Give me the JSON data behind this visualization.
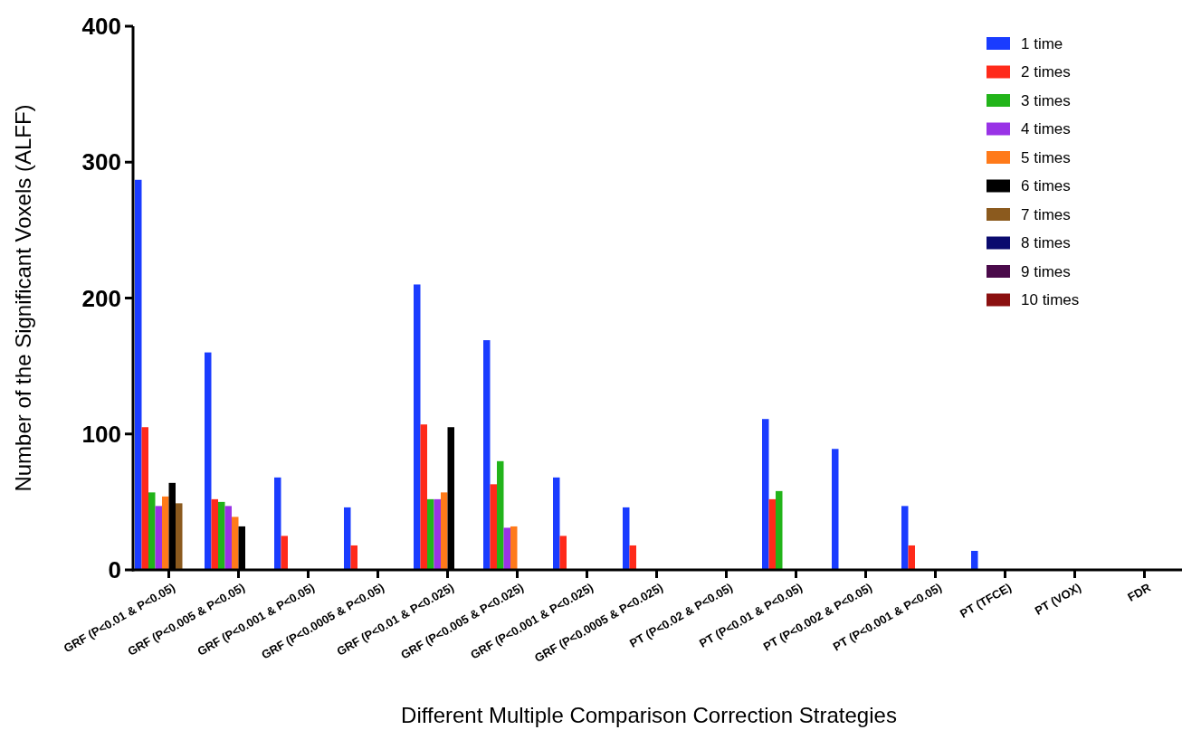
{
  "chart_data": {
    "type": "bar",
    "xlabel": "Different Multiple Comparison Correction Strategies",
    "ylabel": "Number of the Significant Voxels (ALFF)",
    "categories": [
      "GRF (P<0.01 & P<0.05)",
      "GRF (P<0.005 & P<0.05)",
      "GRF (P<0.001 & P<0.05)",
      "GRF (P<0.0005 & P<0.05)",
      "GRF (P<0.01 & P<0.025)",
      "GRF (P<0.005 & P<0.025)",
      "GRF (P<0.001 & P<0.025)",
      "GRF (P<0.0005 & P<0.025)",
      "PT (P<0.02 & P<0.05)",
      "PT (P<0.01 & P<0.05)",
      "PT (P<0.002 & P<0.05)",
      "PT (P<0.001 & P<0.05)",
      "PT (TFCE)",
      "PT (VOX)",
      "FDR"
    ],
    "series": [
      {
        "name": "1 time",
        "color": "#1a3cff",
        "values": [
          287,
          160,
          68,
          46,
          210,
          169,
          68,
          46,
          0,
          111,
          89,
          47,
          14,
          0,
          0
        ]
      },
      {
        "name": "2 times",
        "color": "#ff2a1a",
        "values": [
          105,
          52,
          25,
          18,
          107,
          63,
          25,
          18,
          0,
          52,
          0,
          18,
          0,
          0,
          0
        ]
      },
      {
        "name": "3 times",
        "color": "#22b41a",
        "values": [
          57,
          50,
          0,
          0,
          52,
          80,
          0,
          0,
          0,
          58,
          0,
          0,
          0,
          0,
          0
        ]
      },
      {
        "name": "4 times",
        "color": "#9933e6",
        "values": [
          47,
          47,
          0,
          0,
          52,
          31,
          0,
          0,
          0,
          0,
          0,
          0,
          0,
          0,
          0
        ]
      },
      {
        "name": "5 times",
        "color": "#ff7a1a",
        "values": [
          54,
          39,
          0,
          0,
          57,
          32,
          0,
          0,
          0,
          0,
          0,
          0,
          0,
          0,
          0
        ]
      },
      {
        "name": "6 times",
        "color": "#000000",
        "values": [
          64,
          32,
          0,
          0,
          105,
          0,
          0,
          0,
          0,
          0,
          0,
          0,
          0,
          0,
          0
        ]
      },
      {
        "name": "7 times",
        "color": "#8b5a1e",
        "values": [
          49,
          0,
          0,
          0,
          0,
          0,
          0,
          0,
          0,
          0,
          0,
          0,
          0,
          0,
          0
        ]
      },
      {
        "name": "8 times",
        "color": "#0a0a6e",
        "values": [
          0,
          0,
          0,
          0,
          0,
          0,
          0,
          0,
          0,
          0,
          0,
          0,
          0,
          0,
          0
        ]
      },
      {
        "name": "9 times",
        "color": "#4a0a4a",
        "values": [
          0,
          0,
          0,
          0,
          0,
          0,
          0,
          0,
          0,
          0,
          0,
          0,
          0,
          0,
          0
        ]
      },
      {
        "name": "10 times",
        "color": "#8b1010",
        "values": [
          0,
          0,
          0,
          0,
          0,
          0,
          0,
          0,
          0,
          0,
          0,
          0,
          0,
          0,
          0
        ]
      }
    ],
    "ylim": [
      0,
      400
    ],
    "yticks": [
      0,
      100,
      200,
      300,
      400
    ],
    "legend": "top right",
    "grid": false
  }
}
